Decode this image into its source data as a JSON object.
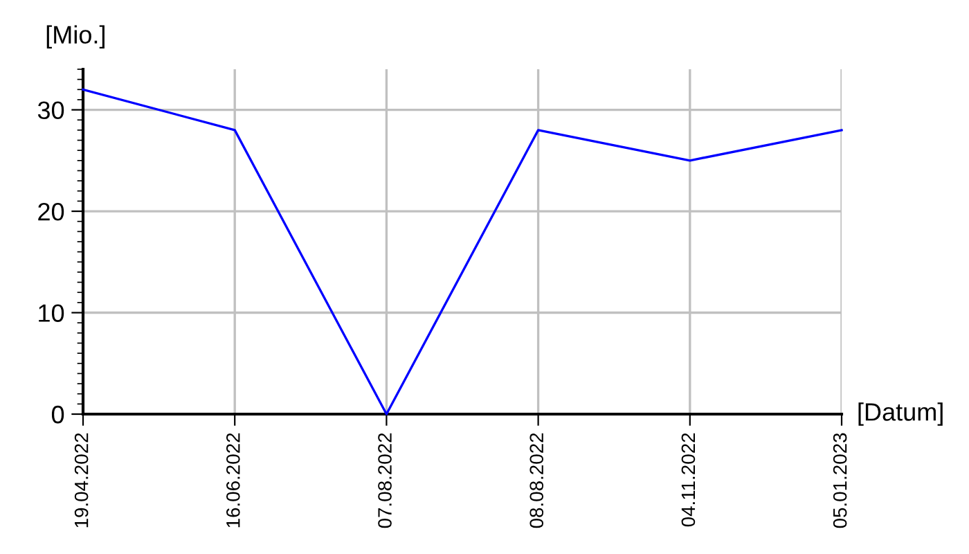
{
  "chart_data": {
    "type": "line",
    "xlabel": "[Datum]",
    "ylabel": "[Mio.]",
    "categories": [
      "19.04.2022",
      "16.06.2022",
      "07.08.2022",
      "08.08.2022",
      "04.11.2022",
      "05.01.2023"
    ],
    "series": [
      {
        "color": "#0000ff",
        "values": [
          32,
          28,
          0,
          28,
          25,
          28
        ]
      }
    ],
    "ylim": [
      0,
      34
    ],
    "yticks": [
      0,
      10,
      20,
      30
    ],
    "grid": true,
    "marker": "none",
    "line_style": "solid"
  }
}
